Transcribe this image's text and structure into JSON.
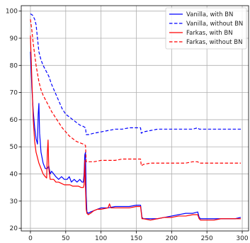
{
  "chart_data": {
    "type": "line",
    "title": "",
    "xlabel": "",
    "ylabel": "",
    "xlim": [
      -13,
      309
    ],
    "ylim": [
      19,
      102
    ],
    "xticks": [
      0,
      50,
      100,
      150,
      200,
      250,
      300
    ],
    "yticks": [
      20,
      30,
      40,
      50,
      60,
      70,
      80,
      90,
      100
    ],
    "grid": true,
    "legend": {
      "placement": "top-right"
    },
    "series": [
      {
        "name": "Vanilla, with BN",
        "color": "#0000ff",
        "dash": "solid",
        "points": [
          [
            0,
            85
          ],
          [
            2,
            72
          ],
          [
            4,
            63
          ],
          [
            6,
            57
          ],
          [
            8,
            53
          ],
          [
            10,
            51
          ],
          [
            11,
            62
          ],
          [
            12,
            66
          ],
          [
            13,
            55
          ],
          [
            15,
            48
          ],
          [
            18,
            44
          ],
          [
            21,
            42
          ],
          [
            24,
            42
          ],
          [
            26,
            43
          ],
          [
            28,
            40
          ],
          [
            30,
            41
          ],
          [
            33,
            40
          ],
          [
            36,
            39
          ],
          [
            40,
            38
          ],
          [
            44,
            39
          ],
          [
            48,
            38
          ],
          [
            52,
            38
          ],
          [
            55,
            39
          ],
          [
            58,
            37
          ],
          [
            62,
            38
          ],
          [
            66,
            37
          ],
          [
            70,
            38
          ],
          [
            73,
            37
          ],
          [
            75,
            37
          ],
          [
            76,
            40
          ],
          [
            77,
            47
          ],
          [
            78,
            48
          ],
          [
            79,
            32
          ],
          [
            80,
            26
          ],
          [
            82,
            25.5
          ],
          [
            85,
            26
          ],
          [
            90,
            26.5
          ],
          [
            95,
            27
          ],
          [
            100,
            27.5
          ],
          [
            110,
            27.5
          ],
          [
            120,
            28
          ],
          [
            130,
            28
          ],
          [
            140,
            28
          ],
          [
            150,
            28.5
          ],
          [
            156,
            28.5
          ],
          [
            158,
            24
          ],
          [
            160,
            23.5
          ],
          [
            170,
            23.5
          ],
          [
            180,
            23.5
          ],
          [
            190,
            24
          ],
          [
            200,
            24.5
          ],
          [
            210,
            25
          ],
          [
            220,
            25.5
          ],
          [
            230,
            25.5
          ],
          [
            237,
            26
          ],
          [
            239,
            24
          ],
          [
            241,
            23.5
          ],
          [
            250,
            23.5
          ],
          [
            260,
            23.5
          ],
          [
            270,
            23.5
          ],
          [
            280,
            23.5
          ],
          [
            290,
            23.5
          ],
          [
            298,
            24
          ]
        ]
      },
      {
        "name": "Vanilla, without BN",
        "color": "#0000ff",
        "dash": "dashed",
        "points": [
          [
            0,
            99
          ],
          [
            3,
            98.5
          ],
          [
            6,
            97
          ],
          [
            8,
            95
          ],
          [
            10,
            90
          ],
          [
            12,
            85
          ],
          [
            15,
            82
          ],
          [
            18,
            80
          ],
          [
            22,
            78
          ],
          [
            26,
            76
          ],
          [
            30,
            73
          ],
          [
            35,
            70
          ],
          [
            40,
            67
          ],
          [
            45,
            64
          ],
          [
            50,
            62
          ],
          [
            55,
            61
          ],
          [
            60,
            60
          ],
          [
            65,
            59
          ],
          [
            70,
            58
          ],
          [
            75,
            57.5
          ],
          [
            78,
            57
          ],
          [
            79,
            54.5
          ],
          [
            82,
            54.5
          ],
          [
            90,
            55
          ],
          [
            100,
            55.5
          ],
          [
            110,
            56
          ],
          [
            120,
            56.5
          ],
          [
            130,
            56.5
          ],
          [
            140,
            57
          ],
          [
            150,
            57
          ],
          [
            156,
            57
          ],
          [
            157,
            55
          ],
          [
            160,
            55.5
          ],
          [
            170,
            56
          ],
          [
            180,
            56.5
          ],
          [
            190,
            56.5
          ],
          [
            200,
            56.5
          ],
          [
            210,
            56.5
          ],
          [
            220,
            56.5
          ],
          [
            230,
            56.5
          ],
          [
            237,
            57
          ],
          [
            239,
            56.5
          ],
          [
            250,
            56.5
          ],
          [
            260,
            56.5
          ],
          [
            270,
            56.5
          ],
          [
            280,
            56.5
          ],
          [
            290,
            56.5
          ],
          [
            298,
            56.5
          ]
        ]
      },
      {
        "name": "Farkas, with BN",
        "color": "#ff0000",
        "dash": "solid",
        "points": [
          [
            0,
            91
          ],
          [
            2,
            75
          ],
          [
            4,
            60
          ],
          [
            6,
            52
          ],
          [
            8,
            48
          ],
          [
            10,
            46
          ],
          [
            12,
            44
          ],
          [
            15,
            42
          ],
          [
            18,
            40
          ],
          [
            21,
            39
          ],
          [
            23,
            38.5
          ],
          [
            24,
            48
          ],
          [
            25,
            52.5
          ],
          [
            26,
            42
          ],
          [
            28,
            38
          ],
          [
            30,
            38
          ],
          [
            33,
            38
          ],
          [
            36,
            37
          ],
          [
            40,
            37
          ],
          [
            44,
            36.5
          ],
          [
            48,
            36
          ],
          [
            52,
            36
          ],
          [
            56,
            36
          ],
          [
            60,
            35.5
          ],
          [
            64,
            35.5
          ],
          [
            68,
            35.5
          ],
          [
            72,
            35
          ],
          [
            75,
            35
          ],
          [
            76,
            36
          ],
          [
            77,
            45
          ],
          [
            78,
            35
          ],
          [
            79,
            27
          ],
          [
            80,
            25.5
          ],
          [
            82,
            25
          ],
          [
            85,
            25.5
          ],
          [
            90,
            26.5
          ],
          [
            95,
            27
          ],
          [
            100,
            27
          ],
          [
            110,
            27.5
          ],
          [
            112,
            29
          ],
          [
            114,
            27.5
          ],
          [
            120,
            27.5
          ],
          [
            130,
            27.5
          ],
          [
            140,
            27.5
          ],
          [
            150,
            28
          ],
          [
            156,
            28
          ],
          [
            158,
            23.5
          ],
          [
            160,
            23.5
          ],
          [
            170,
            23
          ],
          [
            180,
            23.5
          ],
          [
            190,
            24
          ],
          [
            200,
            24
          ],
          [
            210,
            24.5
          ],
          [
            220,
            24.5
          ],
          [
            230,
            25
          ],
          [
            237,
            25
          ],
          [
            239,
            23.5
          ],
          [
            241,
            23
          ],
          [
            250,
            23
          ],
          [
            260,
            23
          ],
          [
            270,
            23.5
          ],
          [
            280,
            23.5
          ],
          [
            290,
            23.5
          ],
          [
            298,
            23.5
          ]
        ]
      },
      {
        "name": "Farkas, without BN",
        "color": "#ff0000",
        "dash": "dashed",
        "points": [
          [
            0,
            97
          ],
          [
            2,
            93
          ],
          [
            4,
            88
          ],
          [
            6,
            84
          ],
          [
            8,
            80
          ],
          [
            10,
            77
          ],
          [
            12,
            74
          ],
          [
            15,
            71
          ],
          [
            18,
            69
          ],
          [
            22,
            67
          ],
          [
            26,
            65
          ],
          [
            30,
            63
          ],
          [
            35,
            61
          ],
          [
            40,
            59
          ],
          [
            45,
            57
          ],
          [
            50,
            55.5
          ],
          [
            55,
            54
          ],
          [
            60,
            53
          ],
          [
            65,
            52
          ],
          [
            70,
            51.5
          ],
          [
            75,
            51
          ],
          [
            78,
            50.5
          ],
          [
            79,
            44.5
          ],
          [
            82,
            44.5
          ],
          [
            90,
            44.5
          ],
          [
            100,
            45
          ],
          [
            110,
            45
          ],
          [
            120,
            45
          ],
          [
            130,
            45.5
          ],
          [
            140,
            45.5
          ],
          [
            150,
            45.5
          ],
          [
            156,
            45.5
          ],
          [
            157,
            43
          ],
          [
            160,
            43.5
          ],
          [
            170,
            44
          ],
          [
            180,
            44
          ],
          [
            190,
            44
          ],
          [
            200,
            44
          ],
          [
            210,
            44
          ],
          [
            220,
            44
          ],
          [
            230,
            44.5
          ],
          [
            237,
            44.5
          ],
          [
            239,
            44
          ],
          [
            250,
            44
          ],
          [
            260,
            44
          ],
          [
            270,
            44
          ],
          [
            280,
            44
          ],
          [
            290,
            44
          ],
          [
            298,
            44
          ]
        ]
      }
    ]
  }
}
